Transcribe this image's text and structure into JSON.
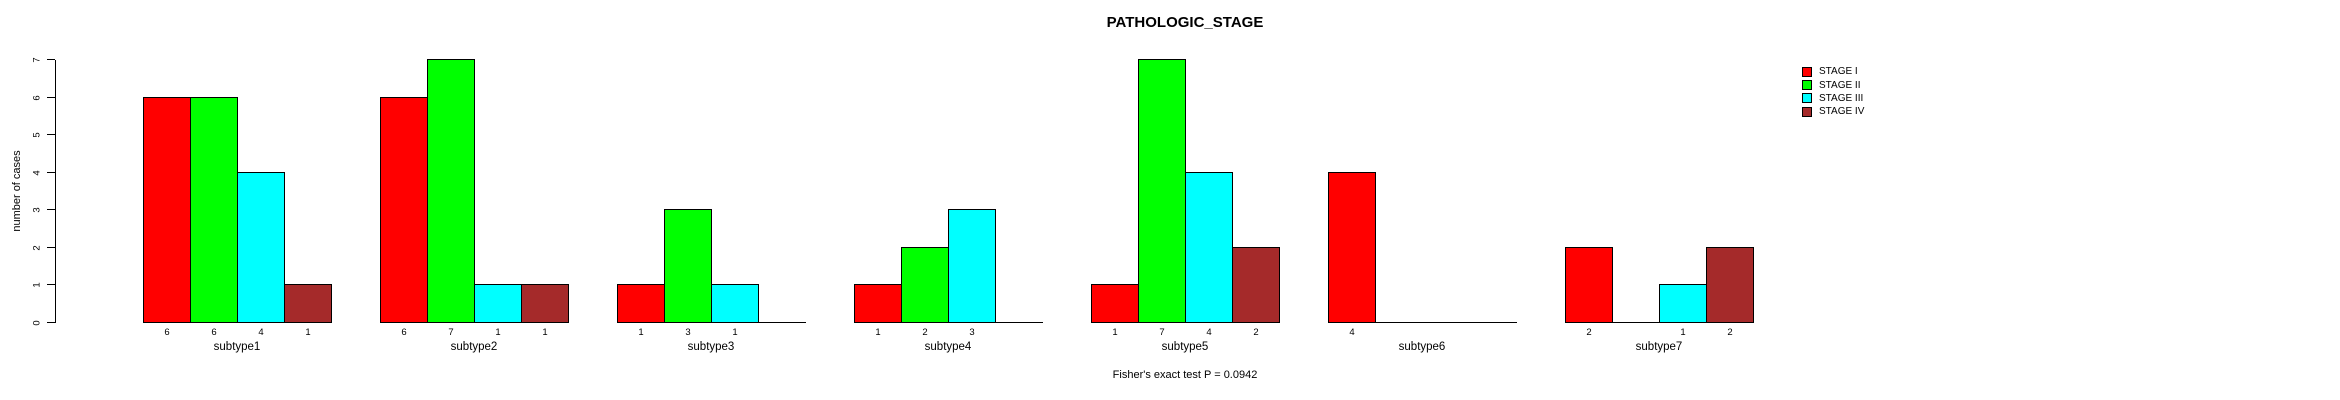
{
  "chart_data": {
    "type": "bar",
    "title": "PATHOLOGIC_STAGE",
    "ylabel": "number of cases",
    "ylim": [
      0,
      7
    ],
    "yticks": [
      0,
      1,
      2,
      3,
      4,
      5,
      6,
      7
    ],
    "categories": [
      "subtype1",
      "subtype2",
      "subtype3",
      "subtype4",
      "subtype5",
      "subtype6",
      "subtype7"
    ],
    "series": [
      {
        "name": "STAGE I",
        "color": "#FF0000",
        "values": [
          6,
          6,
          1,
          1,
          1,
          4,
          2
        ]
      },
      {
        "name": "STAGE II",
        "color": "#00FF00",
        "values": [
          6,
          7,
          3,
          2,
          7,
          0,
          0
        ]
      },
      {
        "name": "STAGE III",
        "color": "#00FFFF",
        "values": [
          4,
          1,
          1,
          3,
          4,
          0,
          1
        ]
      },
      {
        "name": "STAGE IV",
        "color": "#A52A2A",
        "values": [
          1,
          1,
          0,
          0,
          2,
          0,
          2
        ]
      }
    ],
    "bar_value_labels_shown_when_nonzero": true,
    "legend_position": "top-right",
    "grid": false,
    "footnote": "Fisher's exact test P = 0.0942",
    "background_color": "#FFFFFF",
    "axis_color": "#000000"
  }
}
